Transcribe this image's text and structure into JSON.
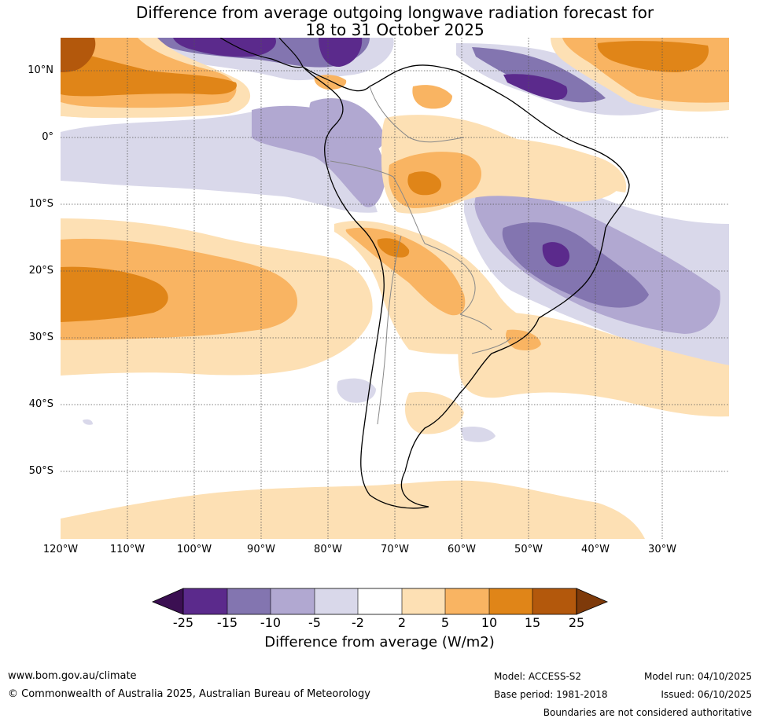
{
  "title": {
    "line1": "Difference from average outgoing longwave radiation forecast for",
    "line2": "18 to 31 October 2025"
  },
  "map": {
    "lat_labels": [
      "10°N",
      "0°",
      "10°S",
      "20°S",
      "30°S",
      "40°S",
      "50°S"
    ],
    "lon_labels": [
      "120°W",
      "110°W",
      "100°W",
      "90°W",
      "80°W",
      "70°W",
      "60°W",
      "50°W",
      "40°W",
      "30°W"
    ]
  },
  "colorbar": {
    "ticks": [
      "-25",
      "-15",
      "-10",
      "-5",
      "-2",
      "2",
      "5",
      "10",
      "15",
      "25"
    ],
    "label": "Difference from average (W/m2)",
    "colors": {
      "lt_neg25": "#3b0f52",
      "neg25_15": "#5b2a8c",
      "neg15_10": "#8375b0",
      "neg10_5": "#b1a8d1",
      "neg5_2": "#d9d8ea",
      "neg2_2": "#ffffff",
      "pos2_5": "#fde0b4",
      "pos5_10": "#f9b462",
      "pos10_15": "#e08518",
      "pos15_25": "#b3580c",
      "gt25": "#7e3a0a"
    }
  },
  "footer": {
    "website": "www.bom.gov.au/climate",
    "copyright": "© Commonwealth of Australia 2025, Australian Bureau of Meteorology",
    "model": "Model: ACCESS-S2",
    "base_period": "Base period: 1981-2018",
    "model_run": "Model run: 04/10/2025",
    "issued": "Issued: 06/10/2025",
    "disclaimer": "Boundaries are not considered authoritative"
  }
}
